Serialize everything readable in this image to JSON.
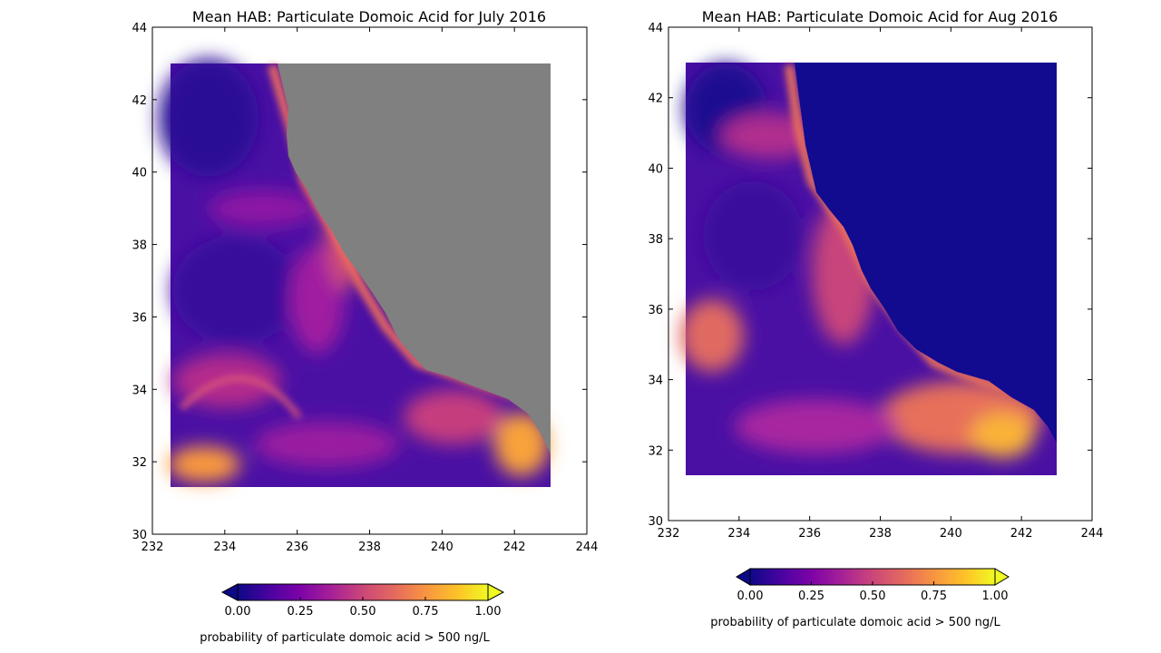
{
  "chart_data": [
    {
      "type": "heatmap",
      "title": "Mean HAB: Particulate Domoic Acid for July 2016",
      "xlim": [
        232,
        244
      ],
      "ylim": [
        30,
        44
      ],
      "x_ticks": [
        "232",
        "234",
        "236",
        "238",
        "240",
        "242",
        "244"
      ],
      "y_ticks": [
        "30",
        "32",
        "34",
        "36",
        "38",
        "40",
        "42",
        "44"
      ],
      "data_extent": {
        "lon": [
          232.5,
          243.0
        ],
        "lat": [
          31.3,
          43.0
        ]
      },
      "land_color": "#808080",
      "colormap": "plasma",
      "colorbar": {
        "min": 0.0,
        "max": 1.0,
        "extend": "both",
        "ticks": [
          "0.00",
          "0.25",
          "0.50",
          "0.75",
          "1.00"
        ],
        "label": "probability of particulate domoic acid > 500 ng/L"
      }
    },
    {
      "type": "heatmap",
      "title": "Mean HAB: Particulate Domoic Acid for Aug 2016",
      "xlim": [
        232,
        244
      ],
      "ylim": [
        30,
        44
      ],
      "x_ticks": [
        "232",
        "234",
        "236",
        "238",
        "240",
        "242",
        "244"
      ],
      "y_ticks": [
        "30",
        "32",
        "34",
        "36",
        "38",
        "40",
        "42",
        "44"
      ],
      "data_extent": {
        "lon": [
          232.5,
          243.0
        ],
        "lat": [
          31.3,
          43.0
        ]
      },
      "land_color": "#120a8f",
      "colormap": "plasma",
      "colorbar": {
        "min": 0.0,
        "max": 1.0,
        "extend": "both",
        "ticks": [
          "0.00",
          "0.25",
          "0.50",
          "0.75",
          "1.00"
        ],
        "label": "probability of particulate domoic acid > 500 ng/L"
      }
    }
  ]
}
